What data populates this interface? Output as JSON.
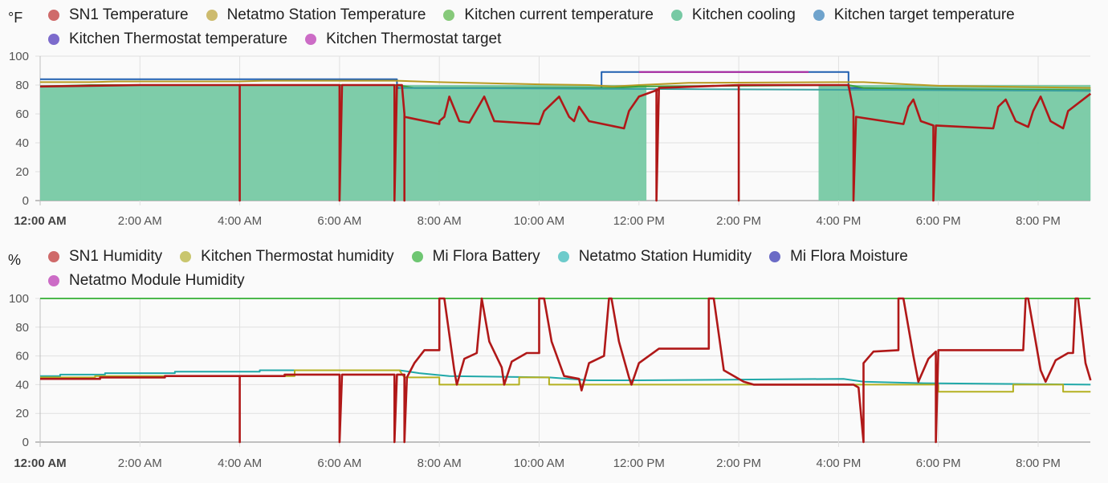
{
  "chart_data": [
    {
      "type": "line",
      "unit_label": "°F",
      "ylim": [
        0,
        100
      ],
      "yticks": [
        0,
        20,
        40,
        60,
        80,
        100
      ],
      "xticks": [
        "12:00 AM",
        "2:00 AM",
        "4:00 AM",
        "6:00 AM",
        "8:00 AM",
        "10:00 AM",
        "12:00 PM",
        "2:00 PM",
        "4:00 PM",
        "6:00 PM",
        "8:00 PM"
      ],
      "x_range_hours": [
        0,
        21.05
      ],
      "grid": true,
      "legend_position": "top",
      "legend": [
        {
          "name": "SN1 Temperature",
          "color": "#cf6a6a"
        },
        {
          "name": "Netatmo Station Temperature",
          "color": "#cdbb6e"
        },
        {
          "name": "Kitchen current temperature",
          "color": "#86c97a"
        },
        {
          "name": "Kitchen cooling",
          "color": "#77c9a4"
        },
        {
          "name": "Kitchen target temperature",
          "color": "#6fa3cc"
        },
        {
          "name": "Kitchen Thermostat temperature",
          "color": "#7c6bcc"
        },
        {
          "name": "Kitchen Thermostat target",
          "color": "#cc6cc6"
        }
      ],
      "series": [
        {
          "name": "Kitchen cooling",
          "style": "area",
          "color": "#77c9a4",
          "on_intervals_hours": [
            [
              0,
              12.15
            ],
            [
              15.6,
              21.05
            ]
          ],
          "value_when_on": 80
        },
        {
          "name": "Kitchen target temperature",
          "color": "#1f5fb0",
          "points": [
            [
              0,
              84
            ],
            [
              7.15,
              84
            ],
            [
              7.15,
              78
            ],
            [
              11.25,
              78
            ],
            [
              11.25,
              89
            ],
            [
              12.0,
              89
            ],
            [
              15.4,
              89
            ],
            [
              16.2,
              89
            ],
            [
              16.2,
              78
            ],
            [
              21.05,
              76
            ]
          ]
        },
        {
          "name": "Kitchen Thermostat target",
          "color": "#b0259e",
          "points": [
            [
              12.0,
              89
            ],
            [
              15.4,
              89
            ]
          ]
        },
        {
          "name": "Netatmo Station Temperature",
          "color": "#b89a22",
          "points": [
            [
              0,
              82
            ],
            [
              1,
              82
            ],
            [
              1.5,
              82.5
            ],
            [
              4,
              82.5
            ],
            [
              4.5,
              83
            ],
            [
              7.15,
              83
            ],
            [
              8,
              82
            ],
            [
              10,
              80.5
            ],
            [
              11,
              80
            ],
            [
              11.5,
              79
            ],
            [
              12,
              80
            ],
            [
              13,
              81.5
            ],
            [
              16,
              82
            ],
            [
              16.5,
              82
            ],
            [
              18,
              79.5
            ],
            [
              21.05,
              78
            ]
          ]
        },
        {
          "name": "Kitchen current temperature",
          "color": "#3da33d",
          "points": [
            [
              0,
              79
            ],
            [
              1,
              80
            ],
            [
              7.15,
              80
            ],
            [
              7.5,
              78
            ],
            [
              11.5,
              78
            ],
            [
              12,
              79
            ],
            [
              16.2,
              80
            ],
            [
              16.5,
              78
            ],
            [
              18,
              77
            ],
            [
              21.05,
              76.5
            ]
          ]
        },
        {
          "name": "Kitchen Thermostat temperature",
          "color": "#3aa0a0",
          "points": [
            [
              7.2,
              78
            ],
            [
              21.05,
              76
            ]
          ]
        },
        {
          "name": "SN1 Temperature",
          "color": "#b01818",
          "points": [
            [
              0,
              79
            ],
            [
              2,
              80
            ],
            [
              4,
              80
            ],
            [
              4,
              0
            ],
            [
              4,
              80
            ],
            [
              6,
              80
            ],
            [
              6,
              0
            ],
            [
              6.05,
              80
            ],
            [
              7.1,
              80
            ],
            [
              7.1,
              0
            ],
            [
              7.15,
              80
            ],
            [
              7.25,
              80
            ],
            [
              7.3,
              60
            ],
            [
              7.3,
              0
            ],
            [
              7.3,
              58
            ],
            [
              8,
              53
            ],
            [
              8.0,
              55
            ],
            [
              8.1,
              58
            ],
            [
              8.2,
              72
            ],
            [
              8.4,
              55
            ],
            [
              8.6,
              54
            ],
            [
              8.7,
              60
            ],
            [
              8.9,
              72
            ],
            [
              9.1,
              55
            ],
            [
              10,
              53
            ],
            [
              10.1,
              62
            ],
            [
              10.4,
              72
            ],
            [
              10.6,
              58
            ],
            [
              10.7,
              55
            ],
            [
              10.8,
              65
            ],
            [
              11.0,
              55
            ],
            [
              11.7,
              50
            ],
            [
              11.8,
              62
            ],
            [
              12.0,
              72
            ],
            [
              12.4,
              77
            ],
            [
              12.35,
              77
            ],
            [
              12.35,
              0
            ],
            [
              12.4,
              78
            ],
            [
              14.0,
              80
            ],
            [
              14.0,
              0
            ],
            [
              14.0,
              80
            ],
            [
              16.2,
              80
            ],
            [
              16.3,
              62
            ],
            [
              16.3,
              0
            ],
            [
              16.35,
              58
            ],
            [
              17.3,
              53
            ],
            [
              17.4,
              65
            ],
            [
              17.5,
              70
            ],
            [
              17.65,
              55
            ],
            [
              17.9,
              52
            ],
            [
              17.9,
              0
            ],
            [
              17.95,
              52
            ],
            [
              19.1,
              50
            ],
            [
              19.2,
              65
            ],
            [
              19.35,
              70
            ],
            [
              19.55,
              55
            ],
            [
              19.8,
              51
            ],
            [
              19.9,
              62
            ],
            [
              20.05,
              72
            ],
            [
              20.25,
              55
            ],
            [
              20.5,
              50
            ],
            [
              20.6,
              62
            ],
            [
              21.05,
              74
            ]
          ]
        }
      ]
    },
    {
      "type": "line",
      "unit_label": "%",
      "ylim": [
        0,
        100
      ],
      "yticks": [
        0,
        20,
        40,
        60,
        80,
        100
      ],
      "xticks": [
        "12:00 AM",
        "2:00 AM",
        "4:00 AM",
        "6:00 AM",
        "8:00 AM",
        "10:00 AM",
        "12:00 PM",
        "2:00 PM",
        "4:00 PM",
        "6:00 PM",
        "8:00 PM"
      ],
      "x_range_hours": [
        0,
        21.05
      ],
      "grid": true,
      "legend_position": "top",
      "legend": [
        {
          "name": "SN1 Humidity",
          "color": "#cf6a6a"
        },
        {
          "name": "Kitchen Thermostat humidity",
          "color": "#c9c66e"
        },
        {
          "name": "Mi Flora Battery",
          "color": "#6ec672"
        },
        {
          "name": "Netatmo Station Humidity",
          "color": "#6dcbcb"
        },
        {
          "name": "Mi Flora Moisture",
          "color": "#6b6bc6"
        },
        {
          "name": "Netatmo Module Humidity",
          "color": "#cc6cc6"
        }
      ],
      "series": [
        {
          "name": "Mi Flora Battery",
          "color": "#4cb84c",
          "points": [
            [
              0,
              100
            ],
            [
              21.05,
              100
            ]
          ]
        },
        {
          "name": "Netatmo Station Humidity",
          "color": "#20a8a8",
          "points": [
            [
              0,
              46
            ],
            [
              0.4,
              46
            ],
            [
              0.4,
              47
            ],
            [
              1.3,
              47
            ],
            [
              1.3,
              48
            ],
            [
              2.7,
              48
            ],
            [
              2.7,
              49
            ],
            [
              4.4,
              49
            ],
            [
              4.4,
              50
            ],
            [
              5.1,
              50
            ],
            [
              7.2,
              50
            ],
            [
              7.4,
              49
            ],
            [
              7.6,
              48
            ],
            [
              8.2,
              46
            ],
            [
              10.2,
              45
            ],
            [
              11,
              43
            ],
            [
              12,
              43
            ],
            [
              16.1,
              44
            ],
            [
              16.5,
              42
            ],
            [
              17.7,
              41
            ],
            [
              21.05,
              40
            ]
          ]
        },
        {
          "name": "Kitchen Thermostat humidity",
          "color": "#b4b020",
          "points": [
            [
              0,
              45
            ],
            [
              1.1,
              45
            ],
            [
              1.1,
              46
            ],
            [
              5.1,
              46
            ],
            [
              5.1,
              50
            ],
            [
              7.2,
              50
            ],
            [
              7.3,
              45
            ],
            [
              8.0,
              45
            ],
            [
              8.0,
              40
            ],
            [
              9.6,
              40
            ],
            [
              9.6,
              45
            ],
            [
              10.2,
              45
            ],
            [
              10.2,
              40
            ],
            [
              16.5,
              40
            ],
            [
              18.0,
              40
            ],
            [
              18.0,
              35
            ],
            [
              19.5,
              35
            ],
            [
              19.5,
              40
            ],
            [
              20.5,
              40
            ],
            [
              20.5,
              35
            ],
            [
              21.05,
              35
            ]
          ]
        },
        {
          "name": "SN1 Humidity",
          "color": "#b01818",
          "points": [
            [
              0,
              44
            ],
            [
              1.2,
              44
            ],
            [
              1.2,
              45
            ],
            [
              2.5,
              45
            ],
            [
              2.5,
              46
            ],
            [
              4,
              46
            ],
            [
              4,
              0
            ],
            [
              4,
              46
            ],
            [
              4.9,
              46
            ],
            [
              4.9,
              47
            ],
            [
              6,
              47
            ],
            [
              6,
              0
            ],
            [
              6.05,
              47
            ],
            [
              7.1,
              47
            ],
            [
              7.1,
              0
            ],
            [
              7.15,
              47
            ],
            [
              7.3,
              47
            ],
            [
              7.3,
              0
            ],
            [
              7.35,
              45
            ],
            [
              7.5,
              55
            ],
            [
              7.7,
              64
            ],
            [
              8.0,
              64
            ],
            [
              8.0,
              100
            ],
            [
              8.1,
              100
            ],
            [
              8.3,
              50
            ],
            [
              8.35,
              40
            ],
            [
              8.5,
              58
            ],
            [
              8.75,
              62
            ],
            [
              8.85,
              100
            ],
            [
              9.0,
              70
            ],
            [
              9.25,
              52
            ],
            [
              9.3,
              40
            ],
            [
              9.45,
              56
            ],
            [
              9.75,
              62
            ],
            [
              10.0,
              62
            ],
            [
              10.0,
              100
            ],
            [
              10.1,
              100
            ],
            [
              10.25,
              70
            ],
            [
              10.5,
              46
            ],
            [
              10.8,
              44
            ],
            [
              10.85,
              36
            ],
            [
              11.0,
              55
            ],
            [
              11.3,
              60
            ],
            [
              11.4,
              100
            ],
            [
              11.45,
              100
            ],
            [
              11.6,
              70
            ],
            [
              11.8,
              45
            ],
            [
              11.85,
              40
            ],
            [
              12.0,
              55
            ],
            [
              12.4,
              65
            ],
            [
              13.4,
              65
            ],
            [
              13.4,
              100
            ],
            [
              13.5,
              100
            ],
            [
              13.7,
              50
            ],
            [
              14.1,
              42
            ],
            [
              14.3,
              40
            ],
            [
              14.8,
              40
            ],
            [
              16.3,
              40
            ],
            [
              16.4,
              38
            ],
            [
              16.5,
              0
            ],
            [
              16.5,
              55
            ],
            [
              16.7,
              63
            ],
            [
              17.2,
              64
            ],
            [
              17.2,
              100
            ],
            [
              17.3,
              100
            ],
            [
              17.5,
              60
            ],
            [
              17.6,
              42
            ],
            [
              17.8,
              58
            ],
            [
              17.95,
              63
            ],
            [
              17.95,
              0
            ],
            [
              18.0,
              64
            ],
            [
              19.7,
              64
            ],
            [
              19.75,
              100
            ],
            [
              19.8,
              100
            ],
            [
              20.05,
              50
            ],
            [
              20.15,
              42
            ],
            [
              20.35,
              57
            ],
            [
              20.6,
              62
            ],
            [
              20.7,
              62
            ],
            [
              20.75,
              100
            ],
            [
              20.8,
              100
            ],
            [
              20.95,
              55
            ],
            [
              21.05,
              43
            ]
          ]
        }
      ]
    }
  ]
}
